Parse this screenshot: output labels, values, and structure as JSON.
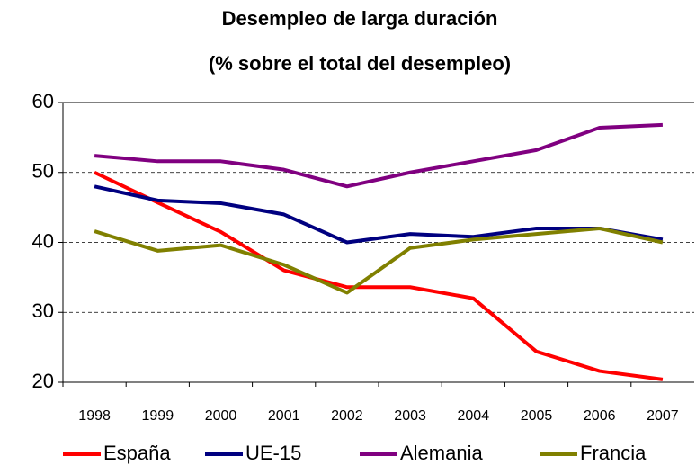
{
  "chart_data": {
    "type": "line",
    "title": "Desempleo de larga duración",
    "subtitle": "(% sobre el total del desempleo)",
    "categories": [
      "1998",
      "1999",
      "2000",
      "2001",
      "2002",
      "2003",
      "2004",
      "2005",
      "2006",
      "2007"
    ],
    "series": [
      {
        "name": "España",
        "color": "#ff0000",
        "values": [
          50,
          45.7,
          41.5,
          36,
          33.6,
          33.6,
          32,
          24.4,
          21.6,
          20.4
        ]
      },
      {
        "name": "UE-15",
        "color": "#000080",
        "values": [
          48,
          46,
          45.6,
          44,
          40,
          41.2,
          40.8,
          42,
          42,
          40.4
        ]
      },
      {
        "name": "Alemania",
        "color": "#800080",
        "values": [
          52.4,
          51.6,
          51.6,
          50.4,
          48,
          50,
          51.6,
          53.2,
          56.4,
          56.8
        ]
      },
      {
        "name": "Francia",
        "color": "#808000",
        "values": [
          41.6,
          38.8,
          39.6,
          36.8,
          32.8,
          39.2,
          40.4,
          41.2,
          42,
          40
        ]
      }
    ],
    "ylim": [
      20,
      60
    ],
    "yticks": [
      20,
      30,
      40,
      50,
      60
    ],
    "grid": true,
    "legend": "bottom"
  }
}
